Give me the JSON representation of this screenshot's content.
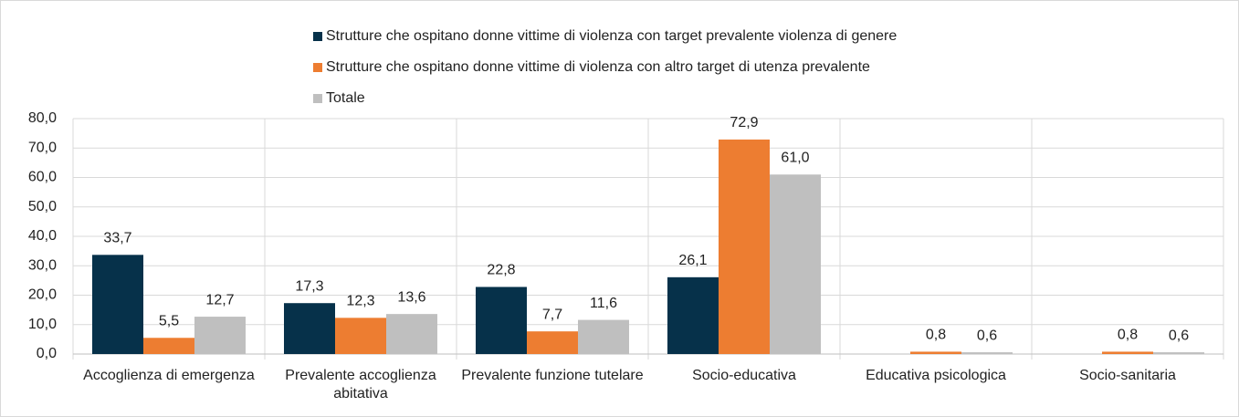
{
  "chart_data": {
    "type": "bar",
    "categories": [
      "Accoglienza di emergenza",
      "Prevalente accoglienza abitativa",
      "Prevalente funzione tutelare",
      "Socio-educativa",
      "Educativa psicologica",
      "Socio-sanitaria"
    ],
    "series": [
      {
        "name": "Strutture che ospitano donne vittime di violenza con target prevalente violenza di genere",
        "color": "#06314a",
        "values": [
          33.7,
          17.3,
          22.8,
          26.1,
          null,
          null
        ],
        "value_labels": [
          "33,7",
          "17,3",
          "22,8",
          "26,1",
          null,
          null
        ]
      },
      {
        "name": "Strutture che ospitano donne vittime di violenza con altro target di utenza prevalente",
        "color": "#ed7d31",
        "values": [
          5.5,
          12.3,
          7.7,
          72.9,
          0.8,
          0.8
        ],
        "value_labels": [
          "5,5",
          "12,3",
          "7,7",
          "72,9",
          "0,8",
          "0,8"
        ]
      },
      {
        "name": "Totale",
        "color": "#bfbfbf",
        "values": [
          12.7,
          13.6,
          11.6,
          61.0,
          0.6,
          0.6
        ],
        "value_labels": [
          "12,7",
          "13,6",
          "11,6",
          "61,0",
          "0,6",
          "0,6"
        ]
      }
    ],
    "ylim": [
      0,
      80
    ],
    "yticks": [
      {
        "value": 0,
        "label": "0,0"
      },
      {
        "value": 10,
        "label": "10,0"
      },
      {
        "value": 20,
        "label": "20,0"
      },
      {
        "value": 30,
        "label": "30,0"
      },
      {
        "value": 40,
        "label": "40,0"
      },
      {
        "value": 50,
        "label": "50,0"
      },
      {
        "value": 60,
        "label": "60,0"
      },
      {
        "value": 70,
        "label": "70,0"
      },
      {
        "value": 80,
        "label": "80,0"
      }
    ],
    "grid": true,
    "legend": "top"
  }
}
